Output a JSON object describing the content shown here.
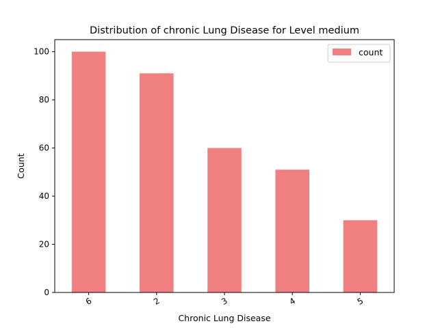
{
  "chart_data": {
    "type": "bar",
    "title": "Distribution of chronic Lung Disease for Level medium",
    "xlabel": "Chronic Lung Disease",
    "ylabel": "Count",
    "categories": [
      "6",
      "2",
      "3",
      "4",
      "5"
    ],
    "series": [
      {
        "name": "count",
        "values": [
          100,
          91,
          60,
          51,
          30
        ]
      }
    ],
    "ylim": [
      0,
      105
    ],
    "yticks": [
      0,
      20,
      40,
      60,
      80,
      100
    ],
    "grid": false,
    "legend": "top-right",
    "bar_color": "#f08080"
  }
}
